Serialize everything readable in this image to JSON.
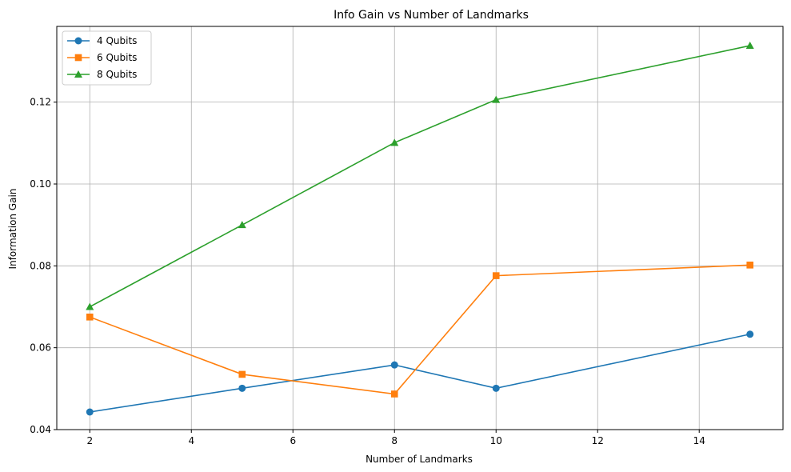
{
  "chart_data": {
    "type": "line",
    "title": "Info Gain vs Number of Landmarks",
    "xlabel": "Number of Landmarks",
    "ylabel": "Information Gain",
    "xlim": [
      1.35,
      15.65
    ],
    "ylim": [
      0.04,
      0.1385
    ],
    "xticks": [
      2,
      4,
      6,
      8,
      10,
      12,
      14
    ],
    "yticks": [
      0.04,
      0.06,
      0.08,
      0.1,
      0.12
    ],
    "xtick_labels": [
      "2",
      "4",
      "6",
      "8",
      "10",
      "12",
      "14"
    ],
    "ytick_labels": [
      "0.04",
      "0.06",
      "0.08",
      "0.10",
      "0.12"
    ],
    "grid": true,
    "legend_position": "top-left",
    "x": [
      2,
      5,
      8,
      10,
      15
    ],
    "series": [
      {
        "name": "4 Qubits",
        "color": "#1f77b4",
        "marker": "circle",
        "values": [
          0.0443,
          0.0501,
          0.0558,
          0.0501,
          0.0633
        ]
      },
      {
        "name": "6 Qubits",
        "color": "#ff7f0e",
        "marker": "square",
        "values": [
          0.0675,
          0.0535,
          0.0487,
          0.0776,
          0.0802
        ]
      },
      {
        "name": "8 Qubits",
        "color": "#2ca02c",
        "marker": "triangle",
        "values": [
          0.07,
          0.09,
          0.1101,
          0.1206,
          0.1338
        ]
      }
    ]
  }
}
